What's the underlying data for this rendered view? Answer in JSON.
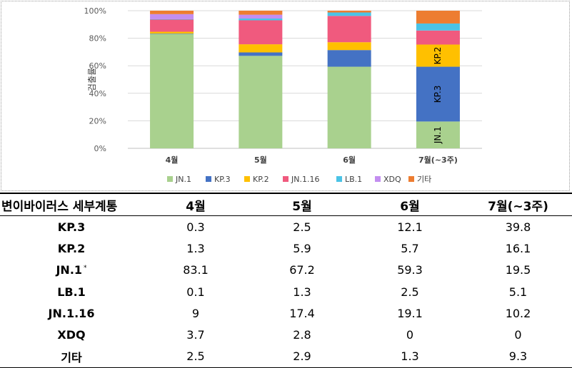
{
  "chart_data": {
    "type": "bar",
    "stacked": true,
    "percent": true,
    "categories": [
      "4월",
      "5월",
      "6월",
      "7월(~3주)"
    ],
    "ylabel": "검출률",
    "ylim": [
      0,
      100
    ],
    "yticks": [
      "0%",
      "20%",
      "40%",
      "60%",
      "80%",
      "100%"
    ],
    "grid": true,
    "legend": "bottom",
    "series": [
      {
        "name": "JN.1",
        "color": "#a9d18e",
        "values": [
          83.1,
          67.2,
          59.3,
          19.5
        ]
      },
      {
        "name": "KP.3",
        "color": "#4472c4",
        "values": [
          0.3,
          2.5,
          12.1,
          39.8
        ]
      },
      {
        "name": "KP.2",
        "color": "#ffc000",
        "values": [
          1.3,
          5.9,
          5.7,
          16.1
        ]
      },
      {
        "name": "JN.1.16",
        "color": "#f05a7e",
        "values": [
          9,
          17.4,
          19.1,
          10.2
        ]
      },
      {
        "name": "LB.1",
        "color": "#4bc3e6",
        "values": [
          0.1,
          1.3,
          2.5,
          5.1
        ]
      },
      {
        "name": "XDQ",
        "color": "#c38ef0",
        "values": [
          3.7,
          2.8,
          0,
          0
        ]
      },
      {
        "name": "기타",
        "color": "#ed7d31",
        "values": [
          2.5,
          2.9,
          1.3,
          9.3
        ]
      }
    ],
    "annotations": [
      {
        "category": "7월(~3주)",
        "series": "JN.1",
        "text": "JN.1"
      },
      {
        "category": "7월(~3주)",
        "series": "KP.3",
        "text": "KP.3"
      },
      {
        "category": "7월(~3주)",
        "series": "KP.2",
        "text": "KP.2"
      }
    ]
  },
  "table": {
    "header": [
      "변이바이러스 세부계통",
      "4월",
      "5월",
      "6월",
      "7월(~3주)"
    ],
    "rows": [
      {
        "label": "KP.3",
        "values": [
          "0.3",
          "2.5",
          "12.1",
          "39.8"
        ]
      },
      {
        "label": "KP.2",
        "values": [
          "1.3",
          "5.9",
          "5.7",
          "16.1"
        ]
      },
      {
        "label": "JN.1",
        "sup": "*",
        "values": [
          "83.1",
          "67.2",
          "59.3",
          "19.5"
        ]
      },
      {
        "label": "LB.1",
        "values": [
          "0.1",
          "1.3",
          "2.5",
          "5.1"
        ]
      },
      {
        "label": "JN.1.16",
        "values": [
          "9",
          "17.4",
          "19.1",
          "10.2"
        ]
      },
      {
        "label": "XDQ",
        "values": [
          "3.7",
          "2.8",
          "0",
          "0"
        ]
      },
      {
        "label": "기타",
        "values": [
          "2.5",
          "2.9",
          "1.3",
          "9.3"
        ]
      }
    ]
  }
}
